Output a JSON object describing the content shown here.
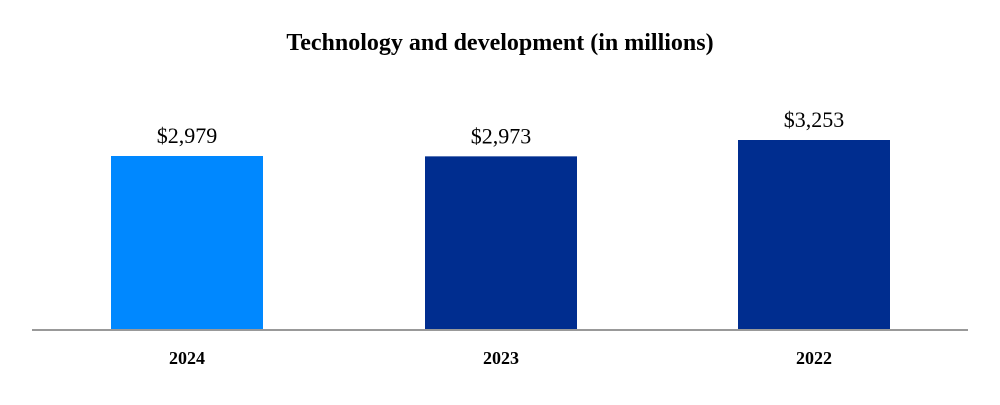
{
  "chart_data": {
    "type": "bar",
    "title": "Technology and development (in millions)",
    "categories": [
      "2024",
      "2023",
      "2022"
    ],
    "values": [
      2979,
      2973,
      3253
    ],
    "value_labels": [
      "$2,979",
      "$2,973",
      "$3,253"
    ],
    "colors": [
      "#0088FF",
      "#002D8F",
      "#002D8F"
    ],
    "xlabel": "",
    "ylabel": "",
    "grid": false,
    "legend": "none",
    "baseline_color": "#999999"
  }
}
